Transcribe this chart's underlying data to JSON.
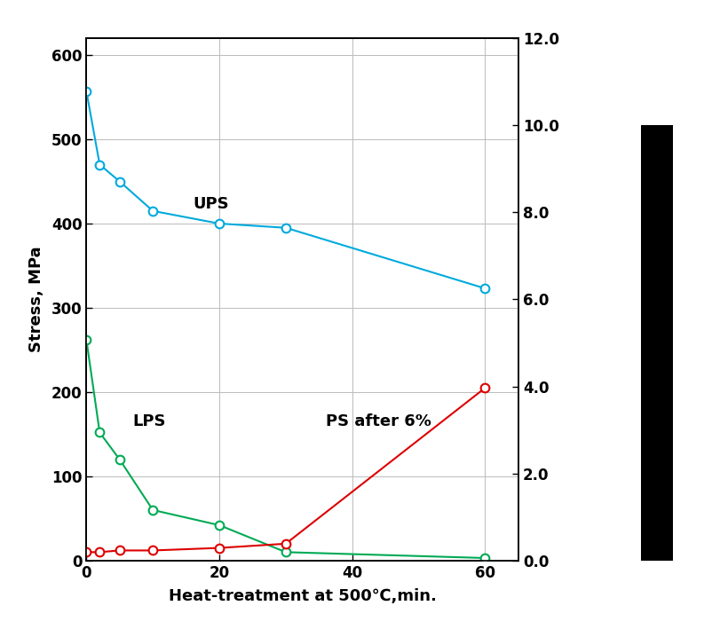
{
  "ups_x": [
    0,
    2,
    5,
    10,
    20,
    30,
    60
  ],
  "ups_y": [
    557,
    470,
    450,
    415,
    400,
    395,
    323
  ],
  "lps_x": [
    0,
    2,
    5,
    10,
    20,
    30,
    60
  ],
  "lps_y": [
    262,
    152,
    120,
    60,
    42,
    10,
    3
  ],
  "ps6_x": [
    0,
    2,
    5,
    10,
    20,
    30,
    60
  ],
  "ps6_y": [
    10,
    10,
    12,
    12,
    15,
    20,
    205
  ],
  "ups_color": "#00AADD",
  "lps_color": "#00AA55",
  "ps6_color": "#DD0000",
  "ups_label": "UPS",
  "lps_label": "LPS",
  "ps6_label": "PS after 6%",
  "xlabel": "Heat-treatment at 500℃,min.",
  "ylabel_left": "Stress, MPa",
  "xlim": [
    0,
    65
  ],
  "ylim_left": [
    0,
    620
  ],
  "ylim_right": [
    0.0,
    12.0
  ],
  "yticks_left": [
    0,
    100,
    200,
    300,
    400,
    500,
    600
  ],
  "yticks_right": [
    0.0,
    2.0,
    4.0,
    6.0,
    8.0,
    10.0,
    12.0
  ],
  "xticks": [
    0,
    20,
    40,
    60
  ],
  "background_color": "#FFFFFF",
  "grid_color": "#BBBBBB",
  "marker": "o",
  "marker_size": 7,
  "linewidth": 1.5
}
